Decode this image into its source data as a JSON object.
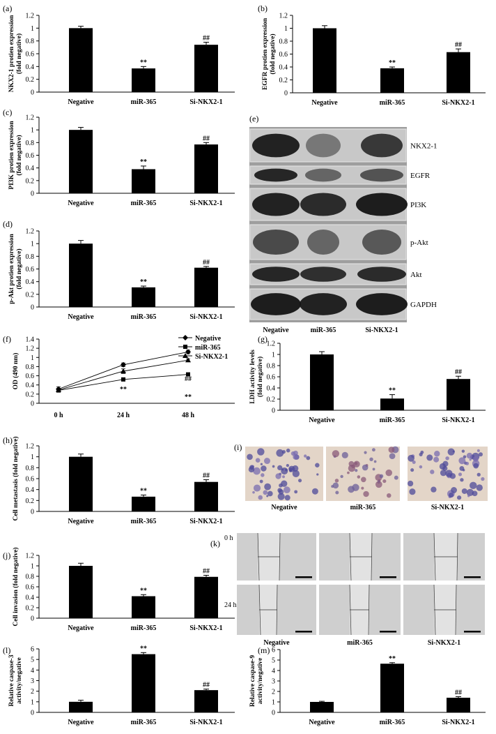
{
  "categories": [
    "Negative",
    "miR-365",
    "Si-NKX2-1"
  ],
  "panels": [
    {
      "label": "(a)",
      "type": "bar",
      "ylabel": [
        "NKX2-1 protien expression",
        "(fold negative)"
      ],
      "ylim": [
        0,
        1.2
      ],
      "yticks": [
        "0",
        "0.2",
        "0.4",
        "0.6",
        "0.8",
        "1",
        "1.2"
      ],
      "values": [
        1.0,
        0.37,
        0.74
      ],
      "errors": [
        0.03,
        0.03,
        0.04
      ],
      "annotations": [
        "",
        "**",
        "##"
      ]
    },
    {
      "label": "(b)",
      "type": "bar",
      "ylabel": [
        "EGFR protien expression",
        "(fold negative)"
      ],
      "ylim": [
        0,
        1.2
      ],
      "yticks": [
        "0",
        "0.2",
        "0.4",
        "0.6",
        "0.8",
        "1",
        "1.2"
      ],
      "values": [
        1.0,
        0.38,
        0.63
      ],
      "errors": [
        0.04,
        0.02,
        0.05
      ],
      "annotations": [
        "",
        "**",
        "##"
      ]
    },
    {
      "label": "(c)",
      "type": "bar",
      "ylabel": [
        "PI3K protien expression",
        "(fold negative)"
      ],
      "ylim": [
        0,
        1.2
      ],
      "yticks": [
        "0",
        "0.2",
        "0.4",
        "0.6",
        "0.8",
        "1",
        "1.2"
      ],
      "values": [
        1.0,
        0.38,
        0.77
      ],
      "errors": [
        0.04,
        0.05,
        0.03
      ],
      "annotations": [
        "",
        "**",
        "##"
      ]
    },
    {
      "label": "(d)",
      "type": "bar",
      "ylabel": [
        "p-Akt protien expression",
        "(fold negative)"
      ],
      "ylim": [
        0,
        1.2
      ],
      "yticks": [
        "0",
        "0.2",
        "0.4",
        "0.6",
        "0.8",
        "1",
        "1.2"
      ],
      "values": [
        1.0,
        0.31,
        0.62
      ],
      "errors": [
        0.05,
        0.02,
        0.02
      ],
      "annotations": [
        "",
        "**",
        "##"
      ]
    },
    {
      "label": "(f)",
      "type": "line",
      "ylabel": [
        "OD (490 nm)"
      ],
      "ylim": [
        0,
        1.4
      ],
      "yticks": [
        "0",
        "0.2",
        "0.4",
        "0.6",
        "0.8",
        "1",
        "1.2",
        "1.4"
      ],
      "x": [
        "0 h",
        "24 h",
        "48 h"
      ],
      "series": [
        {
          "name": "Negative",
          "marker": "diamond",
          "values": [
            0.31,
            0.84,
            1.12
          ],
          "errors": [
            0.05,
            0.04,
            0.04
          ]
        },
        {
          "name": "miR-365",
          "marker": "square",
          "values": [
            0.28,
            0.52,
            0.63
          ],
          "errors": [
            0.03,
            0.02,
            0.02
          ]
        },
        {
          "name": "Si-NKX2-1",
          "marker": "triangle",
          "values": [
            0.29,
            0.7,
            0.94
          ],
          "errors": [
            0.03,
            0.05,
            0.03
          ]
        }
      ],
      "annotations": [
        {
          "x": "24 h",
          "text": "**"
        },
        {
          "x": "48 h",
          "text": "##"
        },
        {
          "x": "48 h",
          "text": "**"
        }
      ]
    },
    {
      "label": "(g)",
      "type": "bar",
      "ylabel": [
        "LDH activity levels",
        "(fold negative)"
      ],
      "ylim": [
        0,
        1.2
      ],
      "yticks": [
        "0",
        "0.2",
        "0.4",
        "0.6",
        "0.8",
        "1",
        "1.2"
      ],
      "values": [
        1.0,
        0.21,
        0.56
      ],
      "errors": [
        0.05,
        0.07,
        0.05
      ],
      "annotations": [
        "",
        "**",
        "##"
      ]
    },
    {
      "label": "(h)",
      "type": "bar",
      "ylabel": [
        "Cell metastasis (fold negative)"
      ],
      "ylim": [
        0,
        1.2
      ],
      "yticks": [
        "0",
        "0.2",
        "0.4",
        "0.6",
        "0.8",
        "1",
        "1.2"
      ],
      "values": [
        1.0,
        0.27,
        0.54
      ],
      "errors": [
        0.05,
        0.03,
        0.04
      ],
      "annotations": [
        "",
        "**",
        "##"
      ]
    },
    {
      "label": "(j)",
      "type": "bar",
      "ylabel": [
        "Cell invasion (fold negative)"
      ],
      "ylim": [
        0,
        1.2
      ],
      "yticks": [
        "0",
        "0.2",
        "0.4",
        "0.6",
        "0.8",
        "1",
        "1.2"
      ],
      "values": [
        1.0,
        0.42,
        0.79
      ],
      "errors": [
        0.05,
        0.03,
        0.03
      ],
      "annotations": [
        "",
        "**",
        "##"
      ]
    },
    {
      "label": "(l)",
      "type": "bar",
      "ylabel": [
        "Relative caspase-3",
        "activity/negative"
      ],
      "ylim": [
        0,
        6
      ],
      "yticks": [
        "0",
        "1",
        "2",
        "3",
        "4",
        "5",
        "6"
      ],
      "values": [
        1.0,
        5.5,
        2.1
      ],
      "errors": [
        0.15,
        0.15,
        0.1
      ],
      "annotations": [
        "",
        "**",
        "##"
      ]
    },
    {
      "label": "(m)",
      "type": "bar",
      "ylabel": [
        "Relative caspase-9",
        "activity/negative"
      ],
      "ylim": [
        0,
        6
      ],
      "yticks": [
        "0",
        "1",
        "2",
        "3",
        "4",
        "5",
        "6"
      ],
      "values": [
        1.0,
        4.65,
        1.4
      ],
      "errors": [
        0.06,
        0.1,
        0.1
      ],
      "annotations": [
        "",
        "**",
        "##"
      ]
    }
  ],
  "western_blot": {
    "label": "(e)",
    "bands": [
      "NKX2-1",
      "EGFR",
      "PI3K",
      "p-Akt",
      "Akt",
      "GAPDH"
    ],
    "lanes": [
      "Negative",
      "miR-365",
      "Si-NKX2-1"
    ]
  },
  "transwell": {
    "label": "(i)",
    "lanes": [
      "Negative",
      "miR-365",
      "Si-NKX2-1"
    ]
  },
  "wound": {
    "label": "(k)",
    "times": [
      "0 h",
      "24 h"
    ],
    "lanes": [
      "Negative",
      "miR-365",
      "Si-NKX2-1"
    ]
  }
}
